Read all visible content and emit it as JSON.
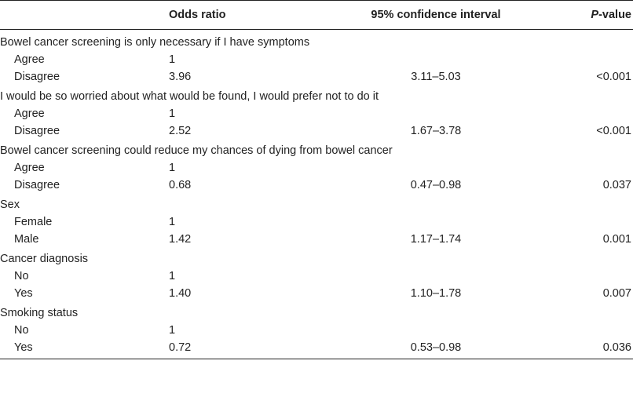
{
  "headers": {
    "label": "",
    "odds_ratio": "Odds ratio",
    "ci": "95% confidence interval",
    "p_italic": "P",
    "p_rest": "-value"
  },
  "groups": [
    {
      "title": "Bowel cancer screening is only necessary if I have symptoms",
      "rows": [
        {
          "label": "Agree",
          "or": "1",
          "ci": "",
          "p": ""
        },
        {
          "label": "Disagree",
          "or": "3.96",
          "ci": "3.11–5.03",
          "p": "<0.001"
        }
      ]
    },
    {
      "title": "I would be so worried about what would be found, I would prefer not to do it",
      "rows": [
        {
          "label": "Agree",
          "or": "1",
          "ci": "",
          "p": ""
        },
        {
          "label": "Disagree",
          "or": "2.52",
          "ci": "1.67–3.78",
          "p": "<0.001"
        }
      ]
    },
    {
      "title": "Bowel cancer screening could reduce my chances of dying from bowel cancer",
      "rows": [
        {
          "label": "Agree",
          "or": "1",
          "ci": "",
          "p": ""
        },
        {
          "label": "Disagree",
          "or": "0.68",
          "ci": "0.47–0.98",
          "p": "0.037"
        }
      ]
    },
    {
      "title": "Sex",
      "rows": [
        {
          "label": "Female",
          "or": "1",
          "ci": "",
          "p": ""
        },
        {
          "label": "Male",
          "or": "1.42",
          "ci": "1.17–1.74",
          "p": "0.001"
        }
      ]
    },
    {
      "title": "Cancer diagnosis",
      "rows": [
        {
          "label": "No",
          "or": "1",
          "ci": "",
          "p": ""
        },
        {
          "label": "Yes",
          "or": "1.40",
          "ci": "1.10–1.78",
          "p": "0.007"
        }
      ]
    },
    {
      "title": "Smoking status",
      "rows": [
        {
          "label": "No",
          "or": "1",
          "ci": "",
          "p": ""
        },
        {
          "label": "Yes",
          "or": "0.72",
          "ci": "0.53–0.98",
          "p": "0.036"
        }
      ]
    }
  ]
}
